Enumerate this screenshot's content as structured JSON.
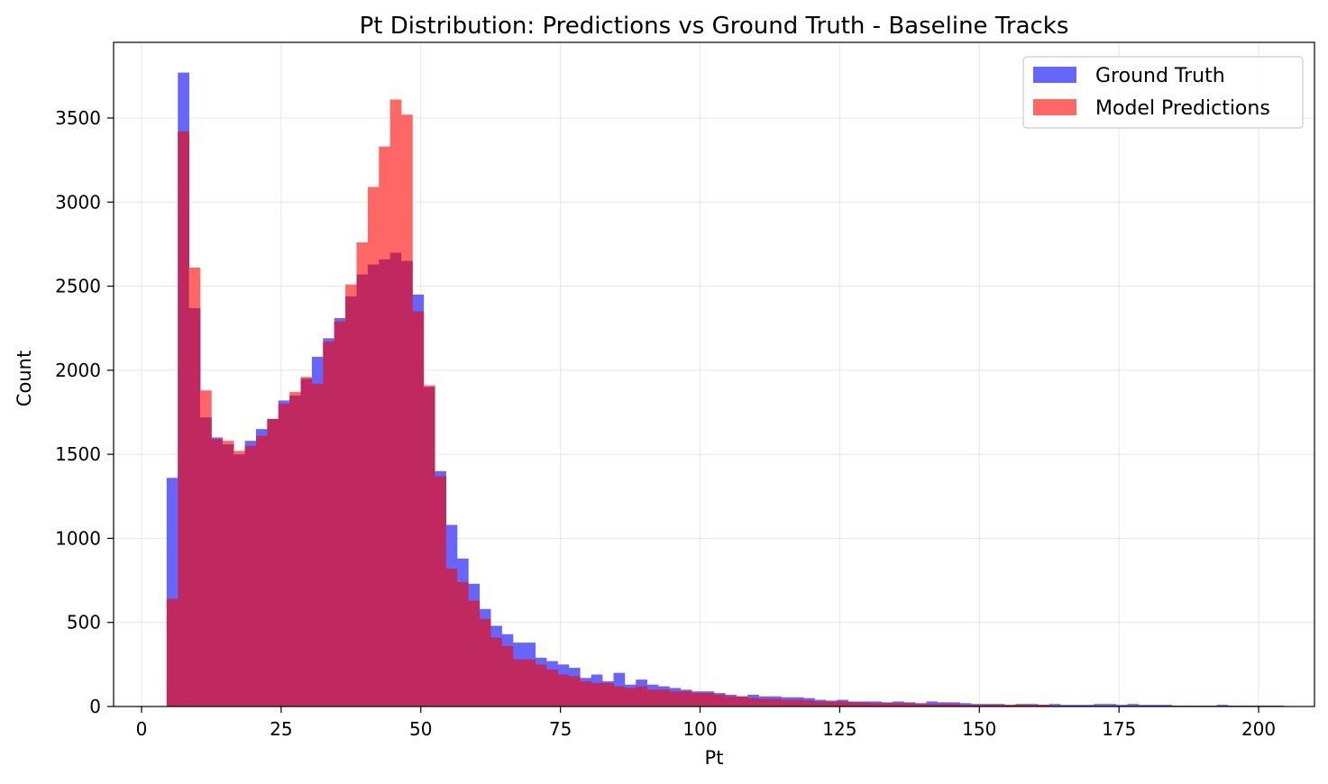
{
  "chart_data": {
    "type": "bar",
    "title": "Pt Distribution: Predictions vs Ground Truth - Baseline Tracks",
    "xlabel": "Pt",
    "ylabel": "Count",
    "xlim": [
      -5,
      210
    ],
    "ylim": [
      0,
      3950
    ],
    "xticks": [
      0,
      25,
      50,
      75,
      100,
      125,
      150,
      175,
      200
    ],
    "yticks": [
      0,
      500,
      1000,
      1500,
      2000,
      2500,
      3000,
      3500
    ],
    "grid": true,
    "legend_position": "top-right",
    "bin_start": 4.5,
    "bin_width": 2.0,
    "overlap_color": "#c02860",
    "series": [
      {
        "name": "Ground Truth",
        "color": "#6666ff",
        "values": [
          1360,
          3770,
          2370,
          1720,
          1600,
          1560,
          1500,
          1580,
          1650,
          1710,
          1820,
          1850,
          1950,
          2080,
          2190,
          2310,
          2440,
          2570,
          2630,
          2660,
          2700,
          2650,
          2450,
          1900,
          1400,
          1080,
          880,
          730,
          580,
          480,
          430,
          380,
          380,
          290,
          270,
          250,
          230,
          170,
          190,
          150,
          200,
          130,
          160,
          130,
          120,
          110,
          100,
          90,
          90,
          80,
          70,
          60,
          70,
          60,
          60,
          55,
          55,
          50,
          40,
          35,
          40,
          30,
          30,
          30,
          25,
          30,
          25,
          20,
          30,
          25,
          25,
          20,
          15,
          15,
          15,
          10,
          15,
          15,
          10,
          15,
          10,
          10,
          10,
          15,
          15,
          10,
          15,
          10,
          10,
          10,
          5,
          5,
          5,
          5,
          10,
          5,
          5,
          5,
          5,
          5
        ]
      },
      {
        "name": "Model Predictions",
        "color": "#ff6666",
        "values": [
          640,
          3420,
          2610,
          1880,
          1590,
          1580,
          1520,
          1550,
          1610,
          1710,
          1800,
          1870,
          1960,
          1920,
          2170,
          2290,
          2510,
          2760,
          3090,
          3330,
          3610,
          3520,
          2350,
          1910,
          1370,
          820,
          740,
          630,
          520,
          410,
          360,
          280,
          280,
          250,
          220,
          190,
          180,
          150,
          140,
          140,
          120,
          110,
          120,
          100,
          100,
          90,
          90,
          80,
          80,
          70,
          60,
          60,
          50,
          45,
          45,
          40,
          40,
          35,
          30,
          30,
          30,
          25,
          25,
          20,
          20,
          20,
          20,
          15,
          15,
          15,
          15,
          10,
          10,
          10,
          10,
          10,
          10,
          10,
          10,
          5,
          5,
          5,
          5,
          5,
          5,
          5,
          5,
          5,
          5,
          5,
          5,
          5,
          5,
          5,
          5,
          5,
          5,
          5,
          5,
          5
        ]
      }
    ]
  }
}
